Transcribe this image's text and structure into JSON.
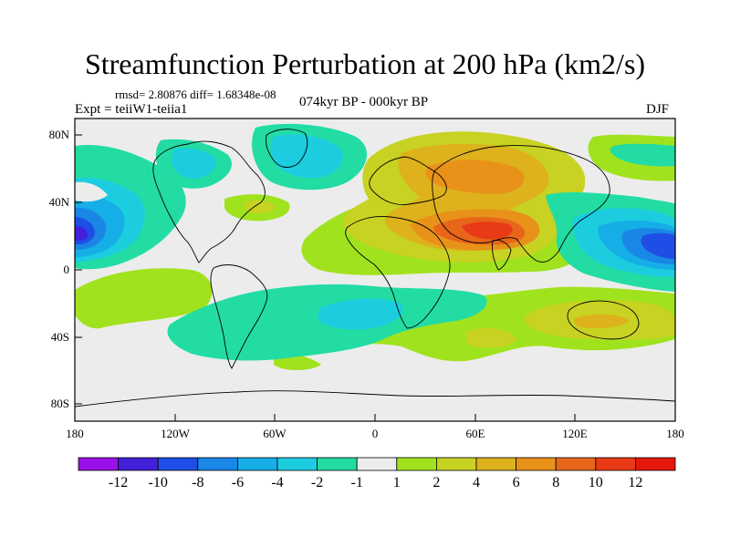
{
  "title": "Streamfunction Perturbation at 200 hPa (km2/s)",
  "rmsd_text": "rmsd= 2.80876 diff= 1.68348e-08",
  "expt_text": "Expt = teiiW1-teiia1",
  "period_text": "074kyr BP - 000kyr BP",
  "season_text": "DJF",
  "lat_ticks": [
    "80N",
    "40N",
    "0",
    "40S",
    "80S"
  ],
  "lon_ticks": [
    "180",
    "120W",
    "60W",
    "0",
    "60E",
    "120E",
    "180"
  ],
  "colorbar": {
    "labels": [
      "-12",
      "-10",
      "-8",
      "-6",
      "-4",
      "-2",
      "-1",
      "1",
      "2",
      "4",
      "6",
      "8",
      "10",
      "12"
    ],
    "colors": [
      "#9a10e8",
      "#4420d8",
      "#1e4ee6",
      "#1a86e6",
      "#16aee6",
      "#1ccde0",
      "#22dca4",
      "#ececec",
      "#a0e21e",
      "#c8d222",
      "#ddb21c",
      "#e8921a",
      "#e8661a",
      "#e83a16",
      "#e6180e"
    ]
  },
  "chart_data": {
    "type": "heatmap",
    "title": "Streamfunction Perturbation at 200 hPa (km2/s)",
    "x_range": [
      -180,
      180
    ],
    "y_range": [
      -90,
      90
    ],
    "units": "km2/s",
    "contour_levels": [
      -12,
      -10,
      -8,
      -6,
      -4,
      -2,
      -1,
      1,
      2,
      4,
      6,
      8,
      10,
      12
    ],
    "features": [
      {
        "lon": 65,
        "lat": 23,
        "peak": 12
      },
      {
        "lon": 40,
        "lat": 55,
        "peak": 5
      },
      {
        "lon": -175,
        "lat": 20,
        "peak": -9
      },
      {
        "lon": 170,
        "lat": 20,
        "peak": -9
      },
      {
        "lon": -75,
        "lat": 65,
        "peak": -2
      },
      {
        "lon": -25,
        "lat": 62,
        "peak": -3
      },
      {
        "lon": 10,
        "lat": -25,
        "peak": -2
      },
      {
        "lon": 130,
        "lat": -25,
        "peak": 4
      },
      {
        "lon": -85,
        "lat": 40,
        "peak": 2
      },
      {
        "lon": -110,
        "lat": 45,
        "peak": -2
      }
    ]
  }
}
